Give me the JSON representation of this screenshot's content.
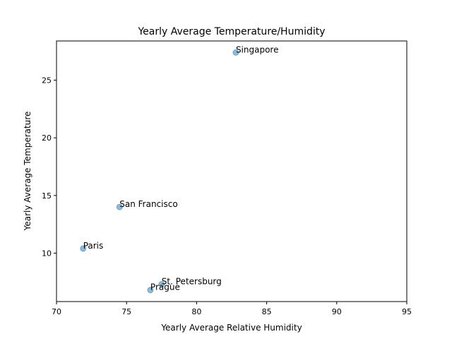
{
  "chart_data": {
    "type": "scatter",
    "title": "Yearly Average Temperature/Humidity",
    "xlabel": "Yearly Average Relative Humidity",
    "ylabel": "Yearly Average Temperature",
    "xlim": [
      70,
      95
    ],
    "ylim": [
      5.8,
      28.4
    ],
    "xticks": [
      70,
      75,
      80,
      85,
      90,
      95
    ],
    "yticks": [
      10,
      15,
      20,
      25
    ],
    "grid": false,
    "point_color": "#1f77b4",
    "point_alpha": 0.5,
    "points": [
      {
        "label": "Singapore",
        "x": 82.8,
        "y": 27.4
      },
      {
        "label": "San Francisco",
        "x": 74.5,
        "y": 14.0
      },
      {
        "label": "Paris",
        "x": 71.9,
        "y": 10.4
      },
      {
        "label": "St. Petersburg",
        "x": 77.5,
        "y": 7.3
      },
      {
        "label": "Prague",
        "x": 76.7,
        "y": 6.8
      }
    ]
  }
}
